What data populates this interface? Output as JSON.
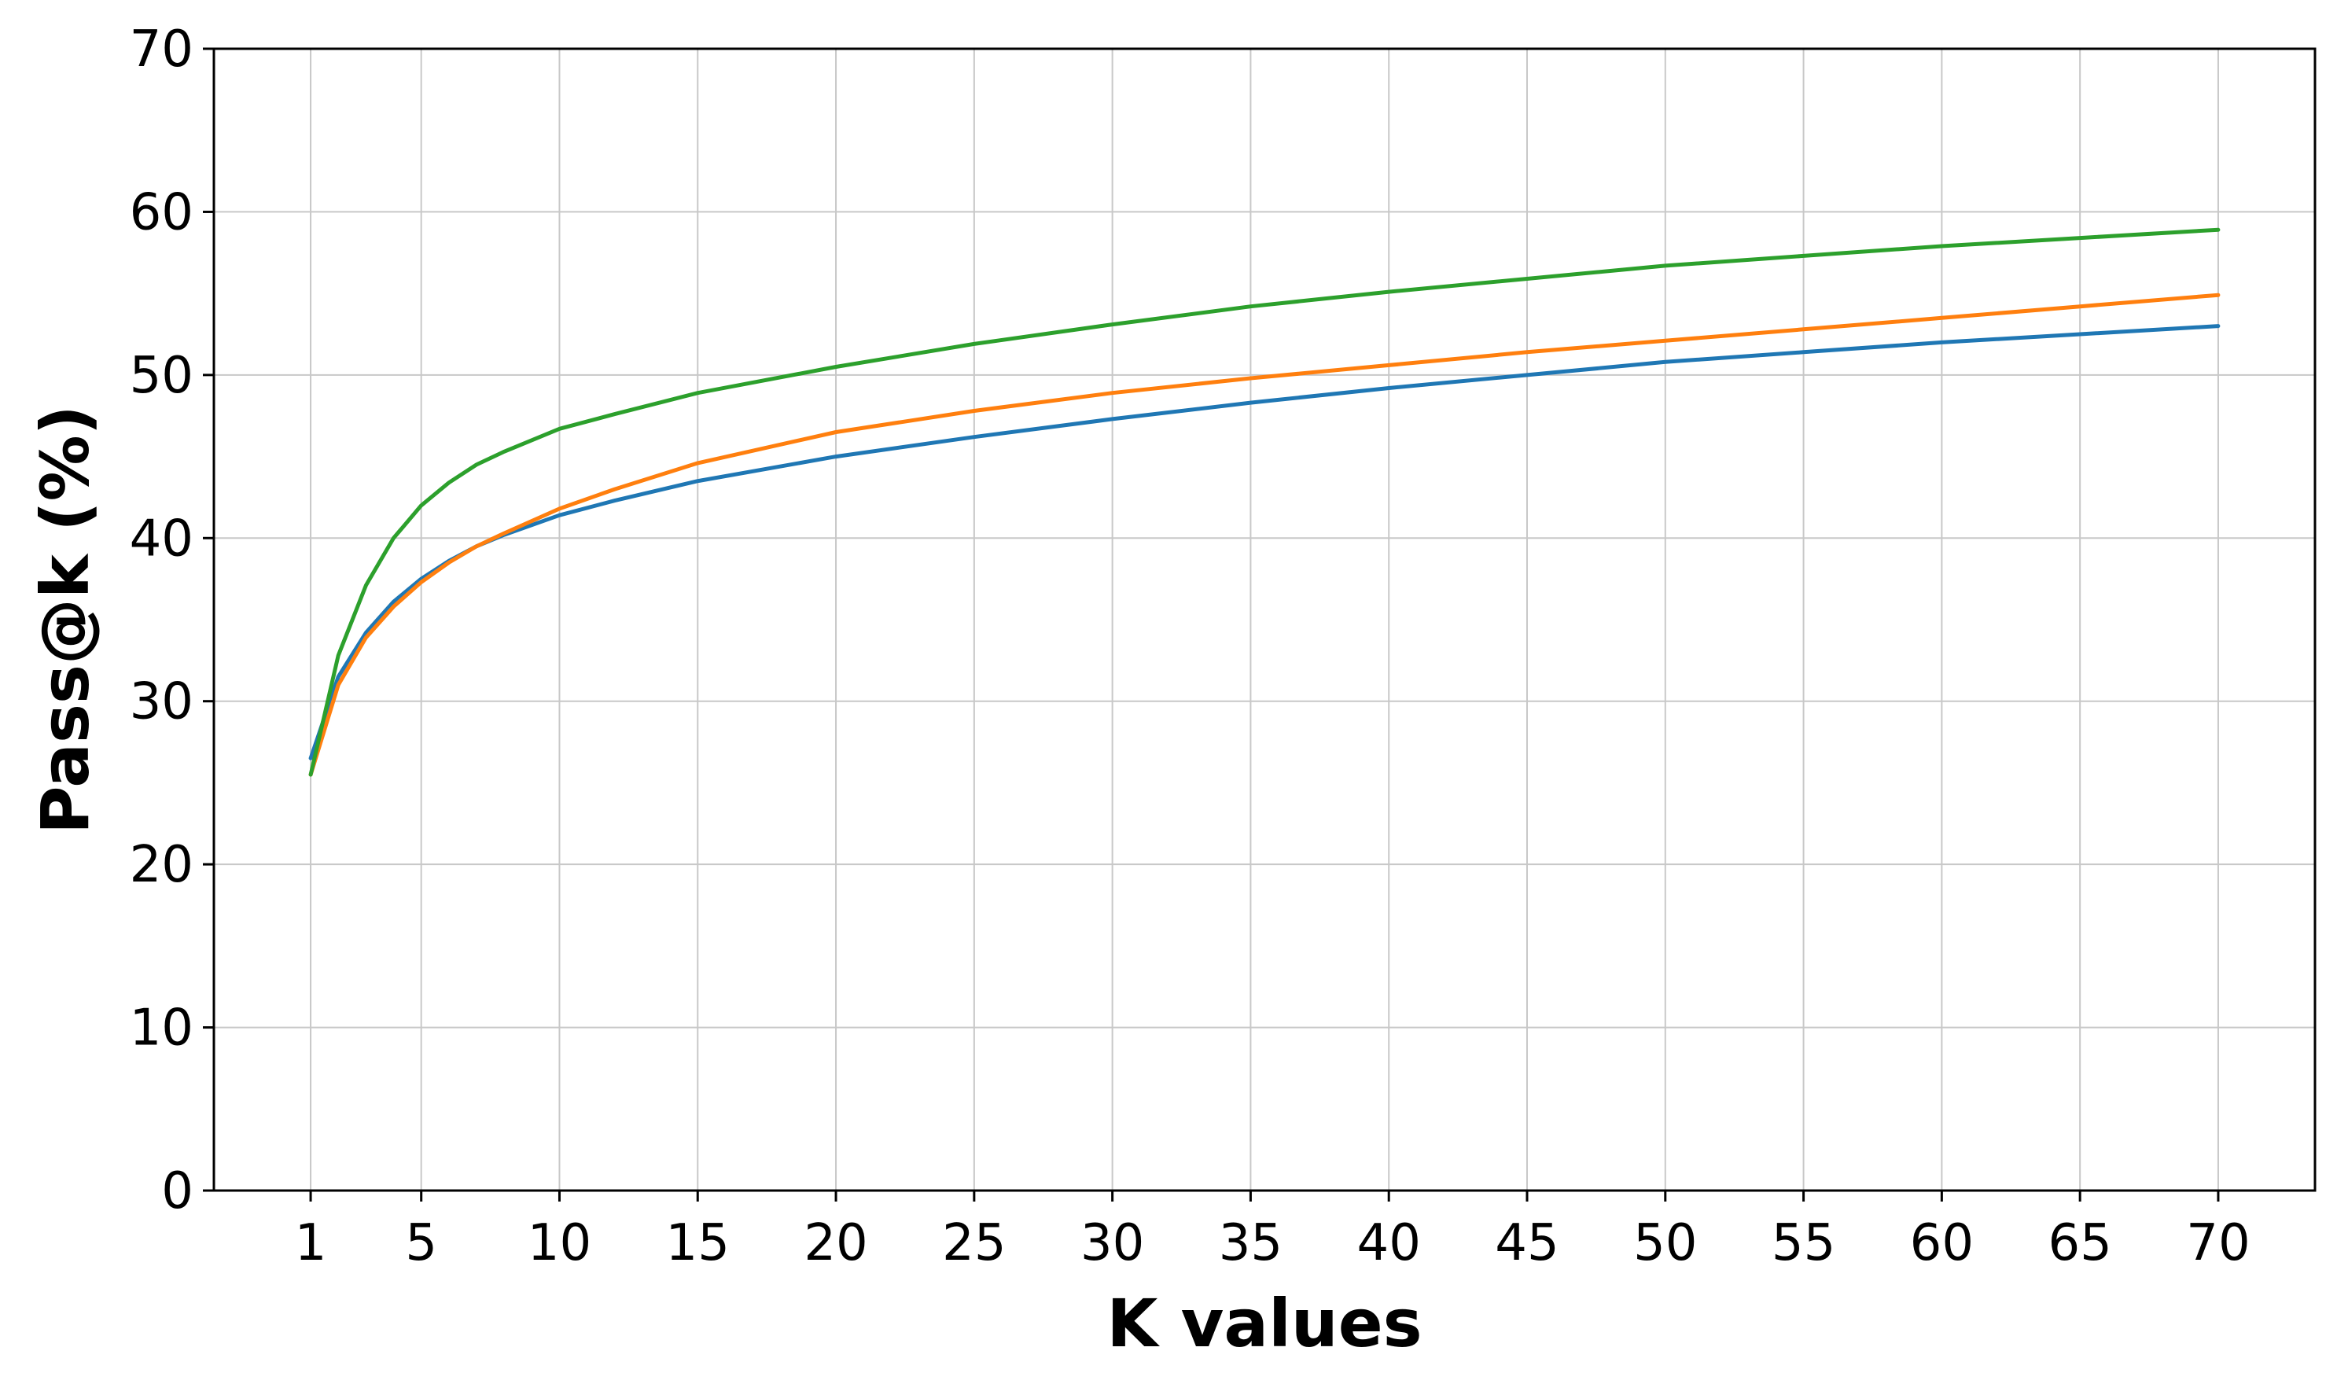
{
  "chart_data": {
    "type": "line",
    "title": "",
    "xlabel": "K values",
    "ylabel": "Pass@k (%)",
    "xlim": [
      -2.5,
      73.5
    ],
    "ylim": [
      0,
      70
    ],
    "xticks": [
      1,
      5,
      10,
      15,
      20,
      25,
      30,
      35,
      40,
      45,
      50,
      55,
      60,
      65,
      70
    ],
    "yticks": [
      0,
      10,
      20,
      30,
      40,
      50,
      60,
      70
    ],
    "grid": true,
    "legend": "none",
    "x": [
      1,
      2,
      3,
      4,
      5,
      6,
      7,
      8,
      10,
      12,
      15,
      20,
      25,
      30,
      35,
      40,
      45,
      50,
      55,
      60,
      65,
      70
    ],
    "series": [
      {
        "color": "#1f77b4",
        "values": [
          26.5,
          31.5,
          34.2,
          36.1,
          37.5,
          38.6,
          39.5,
          40.2,
          41.4,
          42.3,
          43.5,
          45.0,
          46.2,
          47.3,
          48.3,
          49.2,
          50.0,
          50.8,
          51.4,
          52.0,
          52.5,
          53.0
        ]
      },
      {
        "color": "#ff7f0e",
        "values": [
          25.5,
          31.0,
          33.9,
          35.8,
          37.3,
          38.5,
          39.5,
          40.3,
          41.8,
          43.0,
          44.6,
          46.5,
          47.8,
          48.9,
          49.8,
          50.6,
          51.4,
          52.1,
          52.8,
          53.5,
          54.2,
          54.9
        ]
      },
      {
        "color": "#2ca02c",
        "values": [
          25.5,
          32.8,
          37.1,
          40.0,
          42.0,
          43.4,
          44.5,
          45.3,
          46.7,
          47.6,
          48.9,
          50.5,
          51.9,
          53.1,
          54.2,
          55.1,
          55.9,
          56.7,
          57.3,
          57.9,
          58.4,
          58.9
        ]
      }
    ]
  }
}
